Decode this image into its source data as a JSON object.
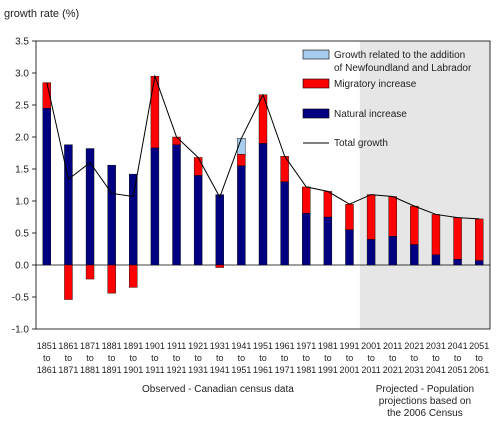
{
  "chart_data": {
    "type": "bar",
    "ylabel": "growth rate (%)",
    "ylim": [
      -1.0,
      3.5
    ],
    "yticks": [
      "3.5",
      "3.0",
      "2.5",
      "2.0",
      "1.5",
      "1.0",
      "0.5",
      "0.0",
      "-0.5",
      "-1.0"
    ],
    "categories": [
      [
        "1851",
        "to",
        "1861"
      ],
      [
        "1861",
        "to",
        "1871"
      ],
      [
        "1871",
        "to",
        "1881"
      ],
      [
        "1881",
        "to",
        "1891"
      ],
      [
        "1891",
        "to",
        "1901"
      ],
      [
        "1901",
        "to",
        "1911"
      ],
      [
        "1911",
        "to",
        "1921"
      ],
      [
        "1921",
        "to",
        "1931"
      ],
      [
        "1931",
        "to",
        "1941"
      ],
      [
        "1941",
        "to",
        "1951"
      ],
      [
        "1951",
        "to",
        "1961"
      ],
      [
        "1961",
        "to",
        "1971"
      ],
      [
        "1971",
        "to",
        "1981"
      ],
      [
        "1981",
        "to",
        "1991"
      ],
      [
        "1991",
        "to",
        "2001"
      ],
      [
        "2001",
        "to",
        "2011"
      ],
      [
        "2011",
        "to",
        "2021"
      ],
      [
        "2021",
        "to",
        "2031"
      ],
      [
        "2031",
        "to",
        "2041"
      ],
      [
        "2041",
        "to",
        "2051"
      ],
      [
        "2051",
        "to",
        "2061"
      ]
    ],
    "series": [
      {
        "name": "Natural increase",
        "color": "#000080",
        "values": [
          2.45,
          1.88,
          1.82,
          1.56,
          1.42,
          1.83,
          1.88,
          1.4,
          1.1,
          1.55,
          1.9,
          1.3,
          0.81,
          0.75,
          0.55,
          0.4,
          0.45,
          0.32,
          0.16,
          0.09,
          0.07
        ]
      },
      {
        "name": "Migratory increase",
        "color": "#ff0000",
        "values": [
          0.4,
          -0.54,
          -0.22,
          -0.44,
          -0.35,
          1.12,
          0.12,
          0.28,
          -0.04,
          0.18,
          0.76,
          0.4,
          0.41,
          0.4,
          0.4,
          0.7,
          0.62,
          0.6,
          0.63,
          0.65,
          0.65
        ]
      },
      {
        "name": "Growth related to the addition of Newfoundland and Labrador",
        "color": "#a6cdf0",
        "values": [
          0,
          0,
          0,
          0,
          0,
          0,
          0,
          0,
          0,
          0.25,
          0,
          0,
          0,
          0,
          0,
          0,
          0,
          0,
          0,
          0,
          0
        ]
      },
      {
        "name": "Total growth",
        "type": "line",
        "color": "#000000",
        "values": [
          2.85,
          1.34,
          1.6,
          1.12,
          1.07,
          2.95,
          2.0,
          1.68,
          1.06,
          1.98,
          2.66,
          1.7,
          1.22,
          1.15,
          0.95,
          1.1,
          1.07,
          0.92,
          0.79,
          0.74,
          0.72
        ]
      }
    ],
    "legend": {
      "position": "top-right",
      "items": [
        {
          "lines": [
            "Growth related to the addition",
            "of Newfoundland and Labrador"
          ],
          "color": "#a6cdf0",
          "kind": "box"
        },
        {
          "lines": [
            "Migratory increase"
          ],
          "color": "#ff0000",
          "kind": "box"
        },
        {
          "lines": [
            "Natural increase"
          ],
          "color": "#000080",
          "kind": "box"
        },
        {
          "lines": [
            "Total growth"
          ],
          "color": "#000000",
          "kind": "line"
        }
      ]
    },
    "groups": {
      "observed": {
        "lines": [
          "Observed - Canadian census data"
        ]
      },
      "projected": {
        "lines": [
          "Projected - Population",
          "projections based on",
          "the 2006 Census"
        ],
        "shade": "#e6e6e6"
      }
    },
    "projected_start_index": 15
  }
}
